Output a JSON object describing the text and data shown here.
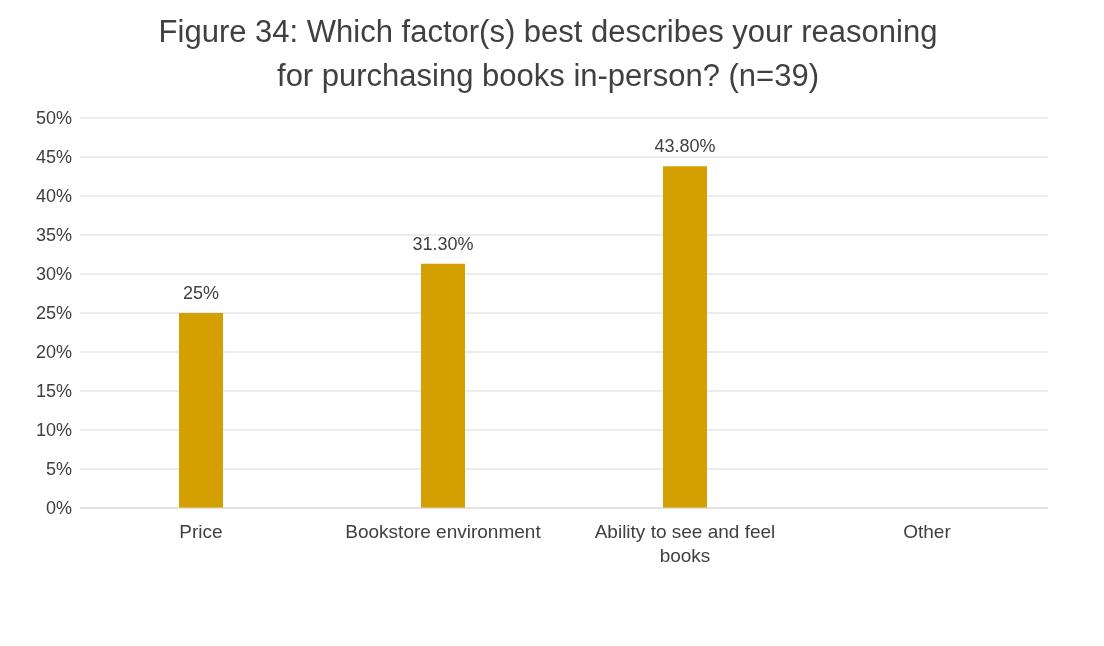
{
  "chart_data": {
    "type": "bar",
    "title": "Figure 34: Which factor(s) best describes your reasoning for purchasing books in-person? (n=39)",
    "categories": [
      "Price",
      "Bookstore environment",
      "Ability to see and feel books",
      "Other"
    ],
    "values": [
      25,
      31.3,
      43.8,
      null
    ],
    "color": "#d4a000",
    "value_labels": [
      "25%",
      "31.30%",
      "43.80%",
      null
    ],
    "ylim": [
      0,
      50
    ],
    "yticks": [
      {
        "value": 0,
        "label": "0%"
      },
      {
        "value": 5,
        "label": "5%"
      },
      {
        "value": 10,
        "label": "10%"
      },
      {
        "value": 15,
        "label": "15%"
      },
      {
        "value": 20,
        "label": "20%"
      },
      {
        "value": 25,
        "label": "25%"
      },
      {
        "value": 30,
        "label": "30%"
      },
      {
        "value": 35,
        "label": "35%"
      },
      {
        "value": 40,
        "label": "40%"
      },
      {
        "value": 45,
        "label": "45%"
      },
      {
        "value": 50,
        "label": "50%"
      }
    ],
    "grid": "y",
    "legend": false
  }
}
